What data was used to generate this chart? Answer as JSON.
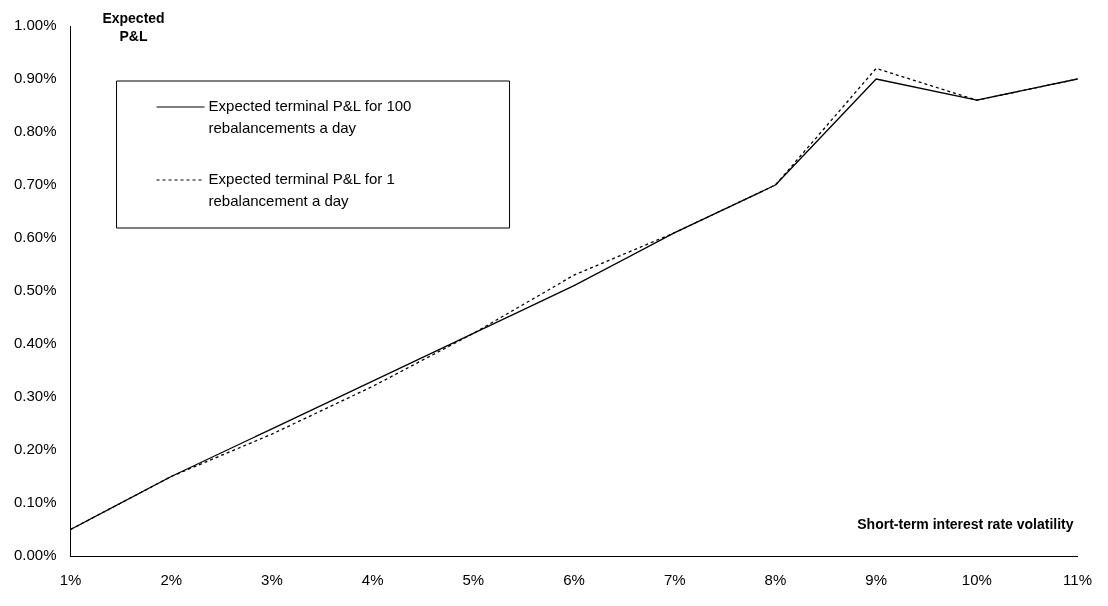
{
  "chart_data": {
    "type": "line",
    "xlabel": "Short-term interest rate volatility",
    "ylabel": "Expected P&L",
    "categories": [
      "1%",
      "2%",
      "3%",
      "4%",
      "5%",
      "6%",
      "7%",
      "8%",
      "9%",
      "10%",
      "11%"
    ],
    "series": [
      {
        "name": "Expected terminal P&L for 100 rebalancements a day",
        "color": "#000000",
        "line_style": "solid",
        "values": [
          0.05,
          0.15,
          0.24,
          0.33,
          0.42,
          0.51,
          0.61,
          0.7,
          0.9,
          0.86,
          0.9
        ]
      },
      {
        "name": "Expected terminal P&L for 1 rebalancement a day",
        "color": "#000000",
        "line_style": "dotted",
        "values": [
          0.05,
          0.15,
          0.23,
          0.32,
          0.42,
          0.53,
          0.61,
          0.7,
          0.92,
          0.86,
          0.9
        ]
      }
    ],
    "ylim": [
      0,
      1
    ],
    "yticks": [
      {
        "value": 0,
        "label": "0.00%"
      },
      {
        "value": 0.1,
        "label": "0.10%"
      },
      {
        "value": 0.2,
        "label": "0.20%"
      },
      {
        "value": 0.3,
        "label": "0.30%"
      },
      {
        "value": 0.4,
        "label": "0.40%"
      },
      {
        "value": 0.5,
        "label": "0.50%"
      },
      {
        "value": 0.6,
        "label": "0.60%"
      },
      {
        "value": 0.7,
        "label": "0.70%"
      },
      {
        "value": 0.8,
        "label": "0.80%"
      },
      {
        "value": 0.9,
        "label": "0.90%"
      },
      {
        "value": 1,
        "label": "1.00%"
      }
    ],
    "grid": false,
    "legend": "top left",
    "marker": "none"
  }
}
